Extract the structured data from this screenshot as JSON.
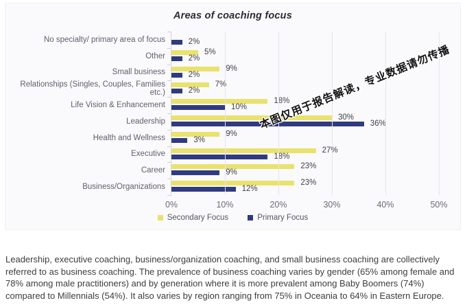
{
  "chart": {
    "title": "Areas of coaching focus",
    "watermark": "本图仅用于报告解读，专业数据请勿传播"
  },
  "chart_data": {
    "type": "bar",
    "orientation": "horizontal",
    "title": "Areas of coaching focus",
    "categories": [
      "No specialty/ primary area of focus",
      "Other",
      "Small business",
      "Relationships (Singles, Couples, Families etc.)",
      "Life Vision & Enhancement",
      "Leadership",
      "Health and Wellness",
      "Executive",
      "Career",
      "Business/Organizations"
    ],
    "series": [
      {
        "name": "Secondary Focus",
        "color": "#E9E26E",
        "values": [
          null,
          5,
          9,
          7,
          18,
          30,
          9,
          27,
          23,
          23
        ]
      },
      {
        "name": "Primary Focus",
        "color": "#2F3A80",
        "values": [
          2,
          2,
          2,
          2,
          10,
          36,
          3,
          18,
          9,
          12
        ]
      }
    ],
    "value_suffix": "%",
    "x_ticks": [
      "0%",
      "10%",
      "20%",
      "30%",
      "40%",
      "50%"
    ],
    "xlim": [
      0,
      50
    ],
    "grid": true,
    "legend_position": "bottom",
    "xlabel": "",
    "ylabel": ""
  },
  "footnote": {
    "text": "Leadership, executive coaching, business/organization coaching, and small business coaching are collectively referred to as business coaching. The prevalence of business coaching varies by gender (65% among female and 78% among male practitioners) and by generation where it is more prevalent among Baby Boomers (74%) compared to Millennials (54%). It also varies by region ranging from 75% in Oceania to 64% in Eastern Europe."
  }
}
